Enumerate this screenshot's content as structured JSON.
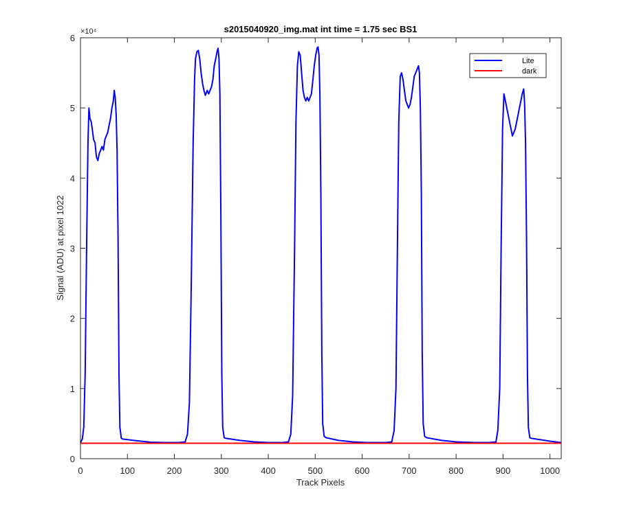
{
  "chart_data": {
    "type": "line",
    "title": "s2015040920_img.mat int time = 1.75 sec   BS1",
    "xlabel": "Track Pixels",
    "ylabel": "Signal (ADU) at pixel 1022",
    "xlim": [
      0,
      1024
    ],
    "ylim": [
      0,
      60000
    ],
    "x_ticks": [
      0,
      100,
      200,
      300,
      400,
      500,
      600,
      700,
      800,
      900,
      1000
    ],
    "x_tick_labels": [
      "0",
      "100",
      "200",
      "300",
      "400",
      "500",
      "600",
      "700",
      "800",
      "900",
      "1000"
    ],
    "y_ticks": [
      0,
      10000,
      20000,
      30000,
      40000,
      50000,
      60000
    ],
    "y_tick_labels": [
      "0",
      "1",
      "2",
      "3",
      "4",
      "5",
      "6"
    ],
    "y_exponent_label": "×10⁴",
    "grid": false,
    "legend_position": "top-right",
    "series": [
      {
        "name": "Lite",
        "color": "#0000ff",
        "points": [
          [
            0,
            2300
          ],
          [
            4,
            2800
          ],
          [
            7,
            4500
          ],
          [
            10,
            12000
          ],
          [
            13,
            30000
          ],
          [
            16,
            45000
          ],
          [
            18,
            50000
          ],
          [
            20,
            48500
          ],
          [
            23,
            48000
          ],
          [
            25,
            47000
          ],
          [
            28,
            45500
          ],
          [
            31,
            45000
          ],
          [
            34,
            43000
          ],
          [
            37,
            42500
          ],
          [
            40,
            43500
          ],
          [
            43,
            44000
          ],
          [
            46,
            44500
          ],
          [
            49,
            44000
          ],
          [
            52,
            45500
          ],
          [
            55,
            46000
          ],
          [
            58,
            46500
          ],
          [
            61,
            47500
          ],
          [
            64,
            48500
          ],
          [
            67,
            50000
          ],
          [
            70,
            51000
          ],
          [
            72,
            52500
          ],
          [
            74,
            51500
          ],
          [
            76,
            49000
          ],
          [
            78,
            44000
          ],
          [
            80,
            32000
          ],
          [
            82,
            12000
          ],
          [
            84,
            4500
          ],
          [
            87,
            2900
          ],
          [
            90,
            2800
          ],
          [
            120,
            2550
          ],
          [
            150,
            2350
          ],
          [
            180,
            2300
          ],
          [
            210,
            2300
          ],
          [
            223,
            2400
          ],
          [
            228,
            3500
          ],
          [
            232,
            8000
          ],
          [
            236,
            25000
          ],
          [
            240,
            45000
          ],
          [
            243,
            54000
          ],
          [
            245,
            57000
          ],
          [
            248,
            58000
          ],
          [
            251,
            58200
          ],
          [
            254,
            57000
          ],
          [
            257,
            55000
          ],
          [
            260,
            53500
          ],
          [
            263,
            52500
          ],
          [
            266,
            51800
          ],
          [
            270,
            52500
          ],
          [
            273,
            52000
          ],
          [
            276,
            52500
          ],
          [
            279,
            53000
          ],
          [
            282,
            54000
          ],
          [
            285,
            56000
          ],
          [
            288,
            57000
          ],
          [
            291,
            58000
          ],
          [
            293,
            58500
          ],
          [
            295,
            57000
          ],
          [
            297,
            52000
          ],
          [
            299,
            35000
          ],
          [
            301,
            12000
          ],
          [
            303,
            4500
          ],
          [
            306,
            3000
          ],
          [
            310,
            2900
          ],
          [
            340,
            2600
          ],
          [
            370,
            2400
          ],
          [
            400,
            2300
          ],
          [
            430,
            2300
          ],
          [
            443,
            2400
          ],
          [
            448,
            3500
          ],
          [
            452,
            9000
          ],
          [
            456,
            30000
          ],
          [
            459,
            48000
          ],
          [
            462,
            56000
          ],
          [
            465,
            58000
          ],
          [
            468,
            57500
          ],
          [
            471,
            55000
          ],
          [
            474,
            52500
          ],
          [
            477,
            51500
          ],
          [
            480,
            51000
          ],
          [
            483,
            51500
          ],
          [
            486,
            51000
          ],
          [
            489,
            51500
          ],
          [
            492,
            52000
          ],
          [
            495,
            54000
          ],
          [
            498,
            56000
          ],
          [
            501,
            57500
          ],
          [
            504,
            58500
          ],
          [
            506,
            58700
          ],
          [
            508,
            57500
          ],
          [
            510,
            52000
          ],
          [
            512,
            38000
          ],
          [
            514,
            15000
          ],
          [
            516,
            5000
          ],
          [
            519,
            3200
          ],
          [
            523,
            3000
          ],
          [
            550,
            2600
          ],
          [
            580,
            2400
          ],
          [
            610,
            2300
          ],
          [
            650,
            2300
          ],
          [
            663,
            2400
          ],
          [
            668,
            4000
          ],
          [
            672,
            10000
          ],
          [
            675,
            30000
          ],
          [
            678,
            48000
          ],
          [
            681,
            54500
          ],
          [
            684,
            55000
          ],
          [
            687,
            54000
          ],
          [
            690,
            52500
          ],
          [
            693,
            51000
          ],
          [
            696,
            50500
          ],
          [
            699,
            50000
          ],
          [
            702,
            50500
          ],
          [
            705,
            51500
          ],
          [
            708,
            53000
          ],
          [
            711,
            54500
          ],
          [
            714,
            55000
          ],
          [
            717,
            55500
          ],
          [
            720,
            56000
          ],
          [
            722,
            55000
          ],
          [
            724,
            50000
          ],
          [
            726,
            38000
          ],
          [
            728,
            15000
          ],
          [
            730,
            5000
          ],
          [
            733,
            3200
          ],
          [
            737,
            3000
          ],
          [
            770,
            2600
          ],
          [
            800,
            2400
          ],
          [
            840,
            2300
          ],
          [
            870,
            2300
          ],
          [
            885,
            2400
          ],
          [
            889,
            4000
          ],
          [
            893,
            10000
          ],
          [
            896,
            30000
          ],
          [
            899,
            47000
          ],
          [
            902,
            52000
          ],
          [
            905,
            51000
          ],
          [
            908,
            50000
          ],
          [
            911,
            49000
          ],
          [
            914,
            48000
          ],
          [
            917,
            47000
          ],
          [
            920,
            46000
          ],
          [
            923,
            46500
          ],
          [
            926,
            47000
          ],
          [
            929,
            48000
          ],
          [
            932,
            49000
          ],
          [
            935,
            50000
          ],
          [
            938,
            51000
          ],
          [
            941,
            52000
          ],
          [
            944,
            52700
          ],
          [
            946,
            50500
          ],
          [
            948,
            45000
          ],
          [
            950,
            32000
          ],
          [
            952,
            12000
          ],
          [
            954,
            4500
          ],
          [
            957,
            3000
          ],
          [
            961,
            2900
          ],
          [
            980,
            2700
          ],
          [
            1000,
            2500
          ],
          [
            1024,
            2300
          ]
        ]
      },
      {
        "name": "dark",
        "color": "#ff0000",
        "points": [
          [
            0,
            2200
          ],
          [
            1024,
            2200
          ]
        ]
      }
    ]
  }
}
